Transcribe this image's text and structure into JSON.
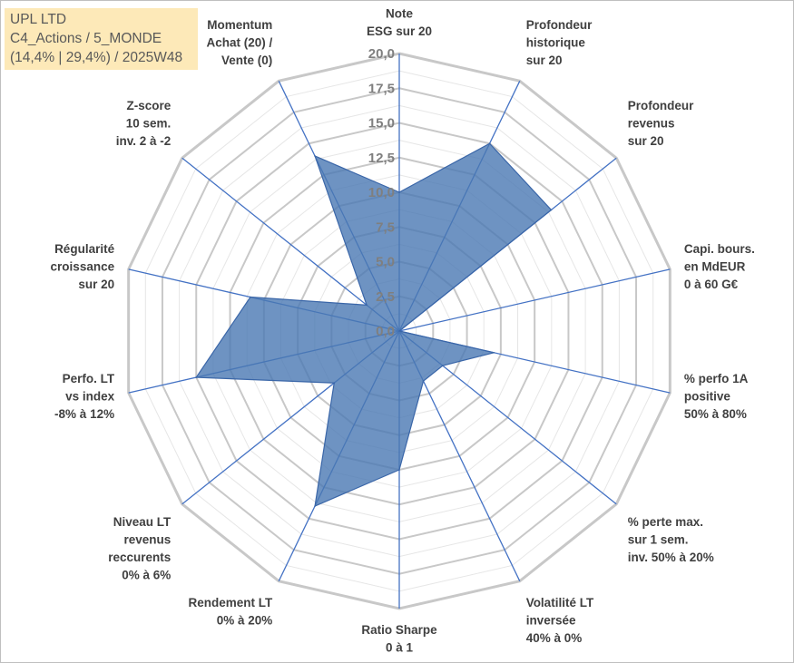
{
  "title_box": {
    "line1": "UPL LTD",
    "line2": "C4_Actions / 5_MONDE",
    "line3": "(14,4% | 29,4%) / 2025W48"
  },
  "colors": {
    "fill": "#4a78b3",
    "stroke": "#3a66a8",
    "spoke": "#4472c4",
    "grid_major": "#c8c8c8",
    "grid_minor": "#e6e6e6",
    "title_bg": "#fde9b8"
  },
  "chart_data": {
    "type": "radar",
    "title": "",
    "rmin": 0,
    "rmax": 20,
    "ticks": [
      "0,0",
      "2,5",
      "5,0",
      "7,5",
      "10,0",
      "12,5",
      "15,0",
      "17,5",
      "20,0"
    ],
    "tick_values": [
      0,
      2.5,
      5,
      7.5,
      10,
      12.5,
      15,
      17.5,
      20
    ],
    "axes": [
      {
        "lines": [
          "Note",
          "ESG sur 20"
        ]
      },
      {
        "lines": [
          "Profondeur",
          "historique",
          "sur 20"
        ]
      },
      {
        "lines": [
          "Profondeur",
          "revenus",
          "sur 20"
        ]
      },
      {
        "lines": [
          "Capi. bours.",
          "en MdEUR",
          "0 à 60 G€"
        ]
      },
      {
        "lines": [
          "% perfo 1A",
          "positive",
          "50% à 80%"
        ]
      },
      {
        "lines": [
          "% perte max.",
          "sur 1 sem.",
          "inv. 50% à 20%"
        ]
      },
      {
        "lines": [
          "Volatilité LT",
          "inversée",
          "40% à 0%"
        ]
      },
      {
        "lines": [
          "Ratio Sharpe",
          "0 à 1"
        ]
      },
      {
        "lines": [
          "Rendement LT",
          "0% à 20%"
        ]
      },
      {
        "lines": [
          "Niveau LT",
          "revenus",
          "reccurents",
          "0% à 6%"
        ]
      },
      {
        "lines": [
          "Perfo. LT",
          "vs index",
          "-8% à 12%"
        ]
      },
      {
        "lines": [
          "Régularité",
          "croissance",
          "sur 20"
        ]
      },
      {
        "lines": [
          "Z-score",
          "10 sem.",
          "inv. 2 à -2"
        ]
      },
      {
        "lines": [
          "Momentum",
          "Achat (20) /",
          "Vente (0)"
        ]
      }
    ],
    "series": [
      {
        "name": "UPL LTD",
        "values": [
          10.0,
          15.0,
          14.0,
          0.0,
          7.0,
          4.0,
          4.0,
          10.0,
          14.0,
          6.0,
          15.0,
          11.0,
          3.0,
          14.0
        ]
      }
    ]
  }
}
